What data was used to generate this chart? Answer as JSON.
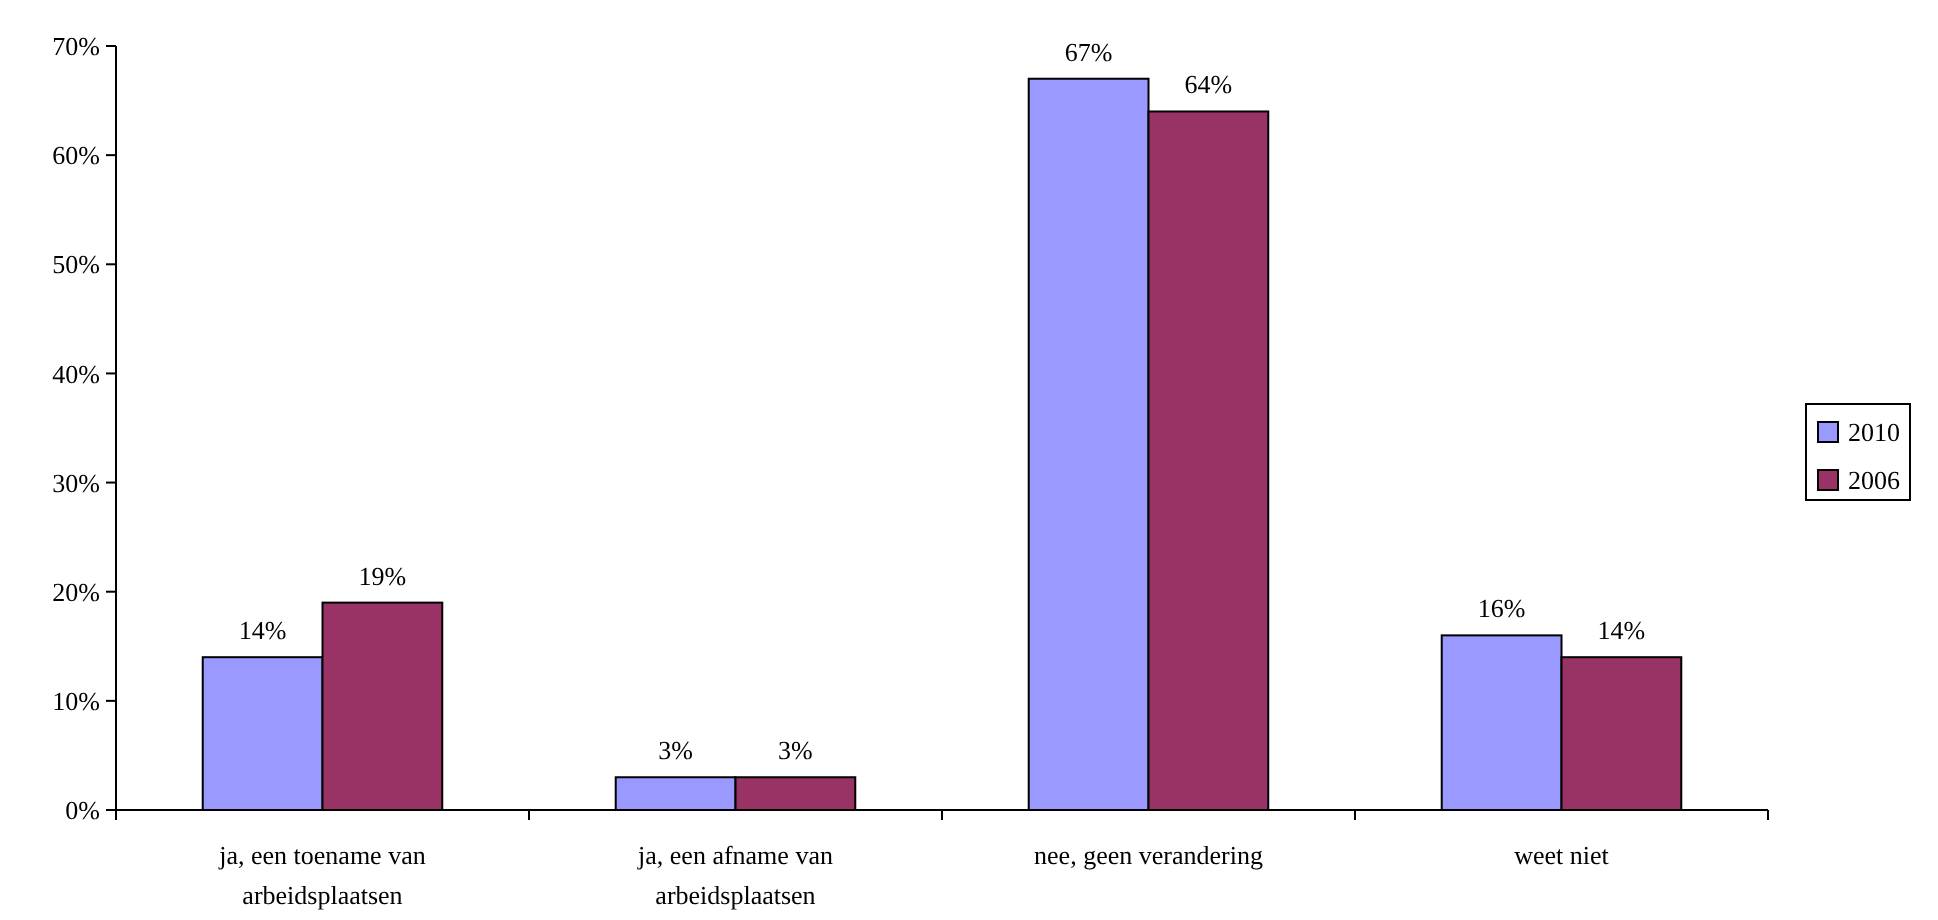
{
  "chart_data": {
    "type": "bar",
    "categories": [
      "ja, een toename van arbeidsplaatsen",
      "ja, een afname van arbeidsplaatsen",
      "nee, geen verandering",
      "weet niet"
    ],
    "series": [
      {
        "name": "2010",
        "color": "#9999ff",
        "values": [
          14,
          3,
          67,
          16
        ],
        "value_labels": [
          "14%",
          "3%",
          "67%",
          "16%"
        ]
      },
      {
        "name": "2006",
        "color": "#993366",
        "values": [
          19,
          3,
          64,
          14
        ],
        "value_labels": [
          "19%",
          "3%",
          "64%",
          "14%"
        ]
      }
    ],
    "ylim": [
      0,
      70
    ],
    "yticks": [
      {
        "value": 0,
        "label": "0%"
      },
      {
        "value": 10,
        "label": "10%"
      },
      {
        "value": 20,
        "label": "20%"
      },
      {
        "value": 30,
        "label": "30%"
      },
      {
        "value": 40,
        "label": "40%"
      },
      {
        "value": 50,
        "label": "50%"
      },
      {
        "value": 60,
        "label": "60%"
      },
      {
        "value": 70,
        "label": "70%"
      }
    ],
    "grid": false,
    "legend": "right"
  }
}
